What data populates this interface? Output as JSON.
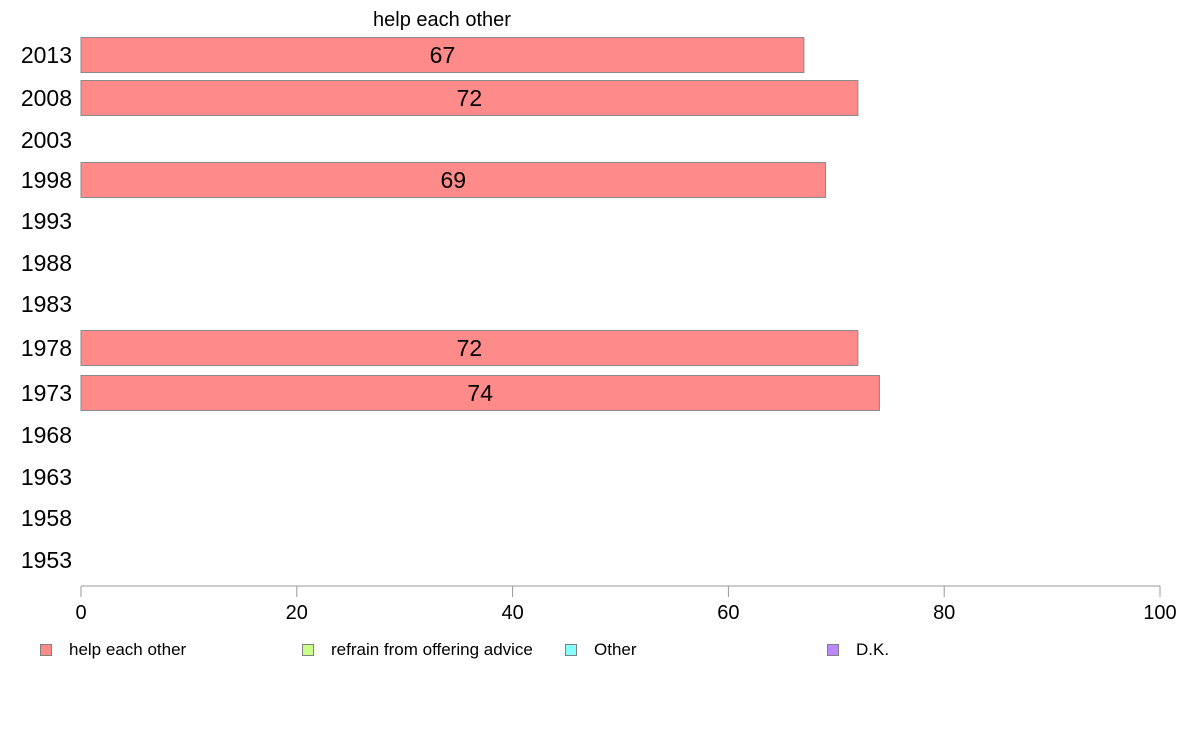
{
  "chart_data": {
    "type": "bar",
    "orientation": "horizontal",
    "series_label": "help each other",
    "categories": [
      "2013",
      "2008",
      "2003",
      "1998",
      "1993",
      "1988",
      "1983",
      "1978",
      "1973",
      "1968",
      "1963",
      "1958",
      "1953"
    ],
    "series": [
      {
        "name": "help each other",
        "color": "#ff8a8a",
        "values": [
          67,
          72,
          null,
          69,
          null,
          null,
          null,
          72,
          74,
          null,
          null,
          null,
          null
        ],
        "labels": [
          "67",
          "72",
          "",
          "69",
          "",
          "",
          "",
          "72",
          "74",
          "",
          "",
          "",
          ""
        ]
      }
    ],
    "xlim": [
      0,
      100
    ],
    "xticks": [
      "0",
      "20",
      "40",
      "60",
      "80",
      "100"
    ],
    "grid": false,
    "legend_position": "bottom",
    "legend": [
      {
        "label": "help each other",
        "color": "#ff8a8a"
      },
      {
        "label": "refrain from offering advice",
        "color": "#ccff88"
      },
      {
        "label": "Other",
        "color": "#88ffff"
      },
      {
        "label": "D.K.",
        "color": "#bb88ff"
      }
    ]
  }
}
